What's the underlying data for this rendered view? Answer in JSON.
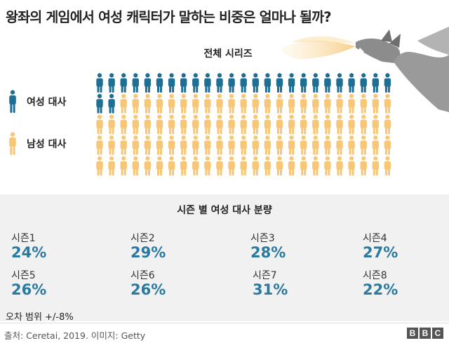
{
  "headline": "왕좌의 게임에서 여성 캐릭터가 말하는 비중은 얼마나 될까?",
  "colors": {
    "female": "#1f6f94",
    "male": "#f7c676",
    "accent": "#2a7aa0",
    "panel_bg": "#f1f1f1"
  },
  "chart_data": {
    "type": "pictogram",
    "title": "전체 시리즈",
    "legend": [
      {
        "name": "여성 대사",
        "icon": "person-icon",
        "color": "#1f6f94"
      },
      {
        "name": "남성 대사",
        "icon": "person-icon",
        "color": "#f7c676"
      }
    ],
    "grid": {
      "columns": 25,
      "rows": 5
    },
    "series": [
      {
        "name": "여성 대사",
        "count": 27
      },
      {
        "name": "남성 대사",
        "count": 98
      }
    ]
  },
  "seasons": {
    "title": "시즌 별 여성 대사 분량",
    "items": [
      {
        "label": "시즌1",
        "value": "24%"
      },
      {
        "label": "시즌2",
        "value": "29%"
      },
      {
        "label": "시즌3",
        "value": "28%"
      },
      {
        "label": "시즌4",
        "value": "27%"
      },
      {
        "label": "시즌5",
        "value": "26%"
      },
      {
        "label": "시즌6",
        "value": "26%"
      },
      {
        "label": "시즌7",
        "value": "31%"
      },
      {
        "label": "시즌8",
        "value": "22%"
      }
    ],
    "margin_note": "오차 범위 +/-8%"
  },
  "footer": {
    "source": "출처: Ceretai, 2019. 이미지: Getty",
    "logo_letters": [
      "B",
      "B",
      "C"
    ]
  },
  "illustration": {
    "icon": "dragon-icon"
  }
}
